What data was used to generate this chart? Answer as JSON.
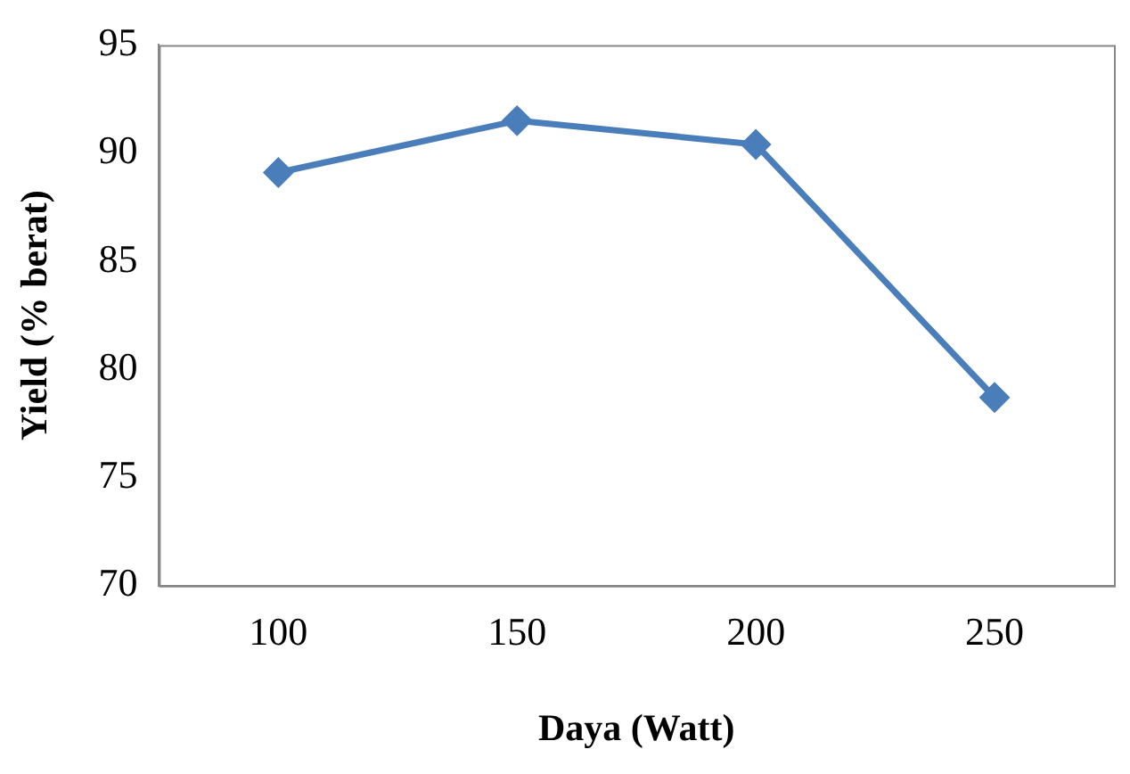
{
  "chart_data": {
    "type": "line",
    "xlabel": "Daya (Watt)",
    "ylabel": "Yield (% berat)",
    "categories": [
      "100",
      "150",
      "200",
      "250"
    ],
    "series": [
      {
        "color": "#4a7ebb",
        "values": [
          89.1,
          91.5,
          90.4,
          78.7
        ]
      }
    ],
    "ylim": [
      70,
      95
    ],
    "yticks": [
      70,
      75,
      80,
      85,
      90,
      95
    ],
    "grid": false,
    "legend": false,
    "marker": "diamond",
    "line_style": "solid"
  }
}
